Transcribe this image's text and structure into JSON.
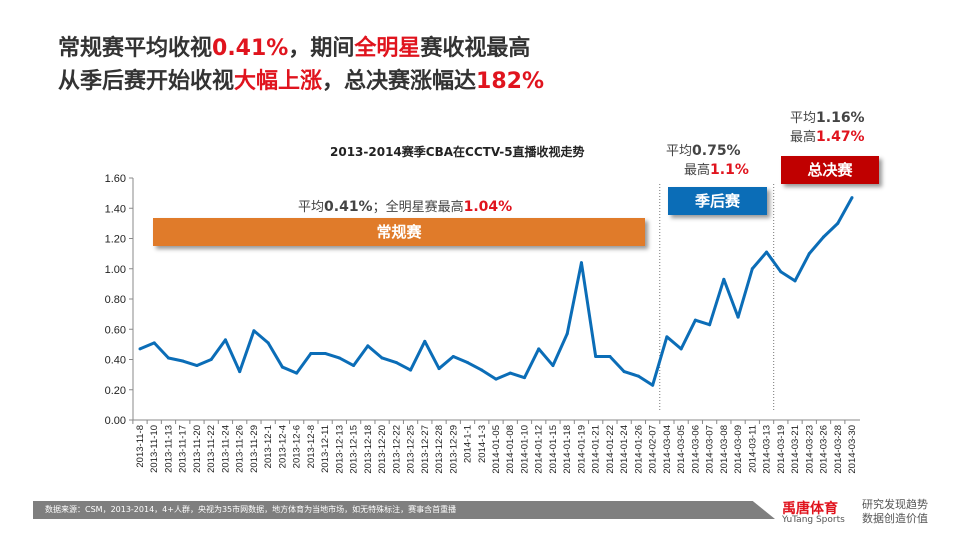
{
  "header": {
    "line1_a": "常规赛平均收视",
    "line1_b": "0.41%",
    "line1_c": "，期间",
    "line1_d": "全明星",
    "line1_e": "赛收视最高",
    "line2_a": "从季后赛开始收视",
    "line2_b": "大幅上涨",
    "line2_c": "，总决赛涨幅达",
    "line2_d": "182%"
  },
  "annotations": {
    "regular": {
      "avg_label": "平均",
      "avg": "0.41%",
      "sep": "；全明星赛最高",
      "max": "1.04%",
      "band": "常规赛",
      "color": "#e07b2a"
    },
    "playoff": {
      "avg_label": "平均",
      "avg": "0.75%",
      "max_label": "最高",
      "max": "1.1%",
      "band": "季后赛",
      "color": "#0b6db7"
    },
    "finals": {
      "avg_label": "平均",
      "avg": "1.16%",
      "max_label": "最高",
      "max": "1.47%",
      "band": "总决赛",
      "color": "#c00000"
    }
  },
  "footer": {
    "source": "数据来源：CSM，2013-2014，4+人群，央视为35市网数据，地方体育为当地市场，如无特殊标注，赛事含首重播",
    "brand": "禹唐体育",
    "brand_en": "YuTang Sports",
    "slogan1": "研究发现趋势",
    "slogan2": "数据创造价值"
  },
  "chart_data": {
    "type": "line",
    "title": "2013-2014赛季CBA在CCTV-5直播收视走势",
    "xlabel": "",
    "ylabel": "",
    "ylim": [
      0,
      1.6
    ],
    "yticks": [
      "0.00",
      "0.20",
      "0.40",
      "0.60",
      "0.80",
      "1.00",
      "1.20",
      "1.40",
      "1.60"
    ],
    "line_color": "#0b6db7",
    "categories": [
      "2013-11-8",
      "2013-11-10",
      "2013-11-13",
      "2013-11-17",
      "2013-11-20",
      "2013-11-22",
      "2013-11-24",
      "2013-11-26",
      "2013-11-29",
      "2013-12-1",
      "2013-12-4",
      "2013-12-6",
      "2013-12-8",
      "2013-12-11",
      "2013-12-13",
      "2013-12-15",
      "2013-12-18",
      "2013-12-20",
      "2013-12-22",
      "2013-12-25",
      "2013-12-27",
      "2013-12-28",
      "2013-12-29",
      "2014-1-1",
      "2014-1-3",
      "2014-01-05",
      "2014-01-08",
      "2014-01-10",
      "2014-01-12",
      "2014-01-15",
      "2014-01-18",
      "2014-01-19",
      "2014-01-21",
      "2014-01-22",
      "2014-01-24",
      "2014-01-26",
      "2014-02-07",
      "2014-03-04",
      "2014-03-05",
      "2014-03-06",
      "2014-03-07",
      "2014-03-08",
      "2014-03-09",
      "2014-03-11",
      "2014-03-13",
      "2014-03-19",
      "2014-03-21",
      "2014-03-23",
      "2014-03-26",
      "2014-03-28",
      "2014-03-30"
    ],
    "values": [
      0.47,
      0.51,
      0.41,
      0.39,
      0.36,
      0.4,
      0.53,
      0.32,
      0.59,
      0.51,
      0.35,
      0.31,
      0.44,
      0.44,
      0.41,
      0.36,
      0.49,
      0.41,
      0.38,
      0.33,
      0.52,
      0.34,
      0.42,
      0.38,
      0.33,
      0.27,
      0.31,
      0.28,
      0.47,
      0.36,
      0.57,
      1.04,
      0.42,
      0.42,
      0.32,
      0.29,
      0.23,
      0.55,
      0.47,
      0.66,
      0.63,
      0.93,
      0.68,
      1.0,
      1.11,
      0.98,
      0.92,
      1.1,
      1.21,
      1.3,
      1.47
    ],
    "phase_dividers_after": [
      "2014-02-07",
      "2014-03-13"
    ]
  }
}
